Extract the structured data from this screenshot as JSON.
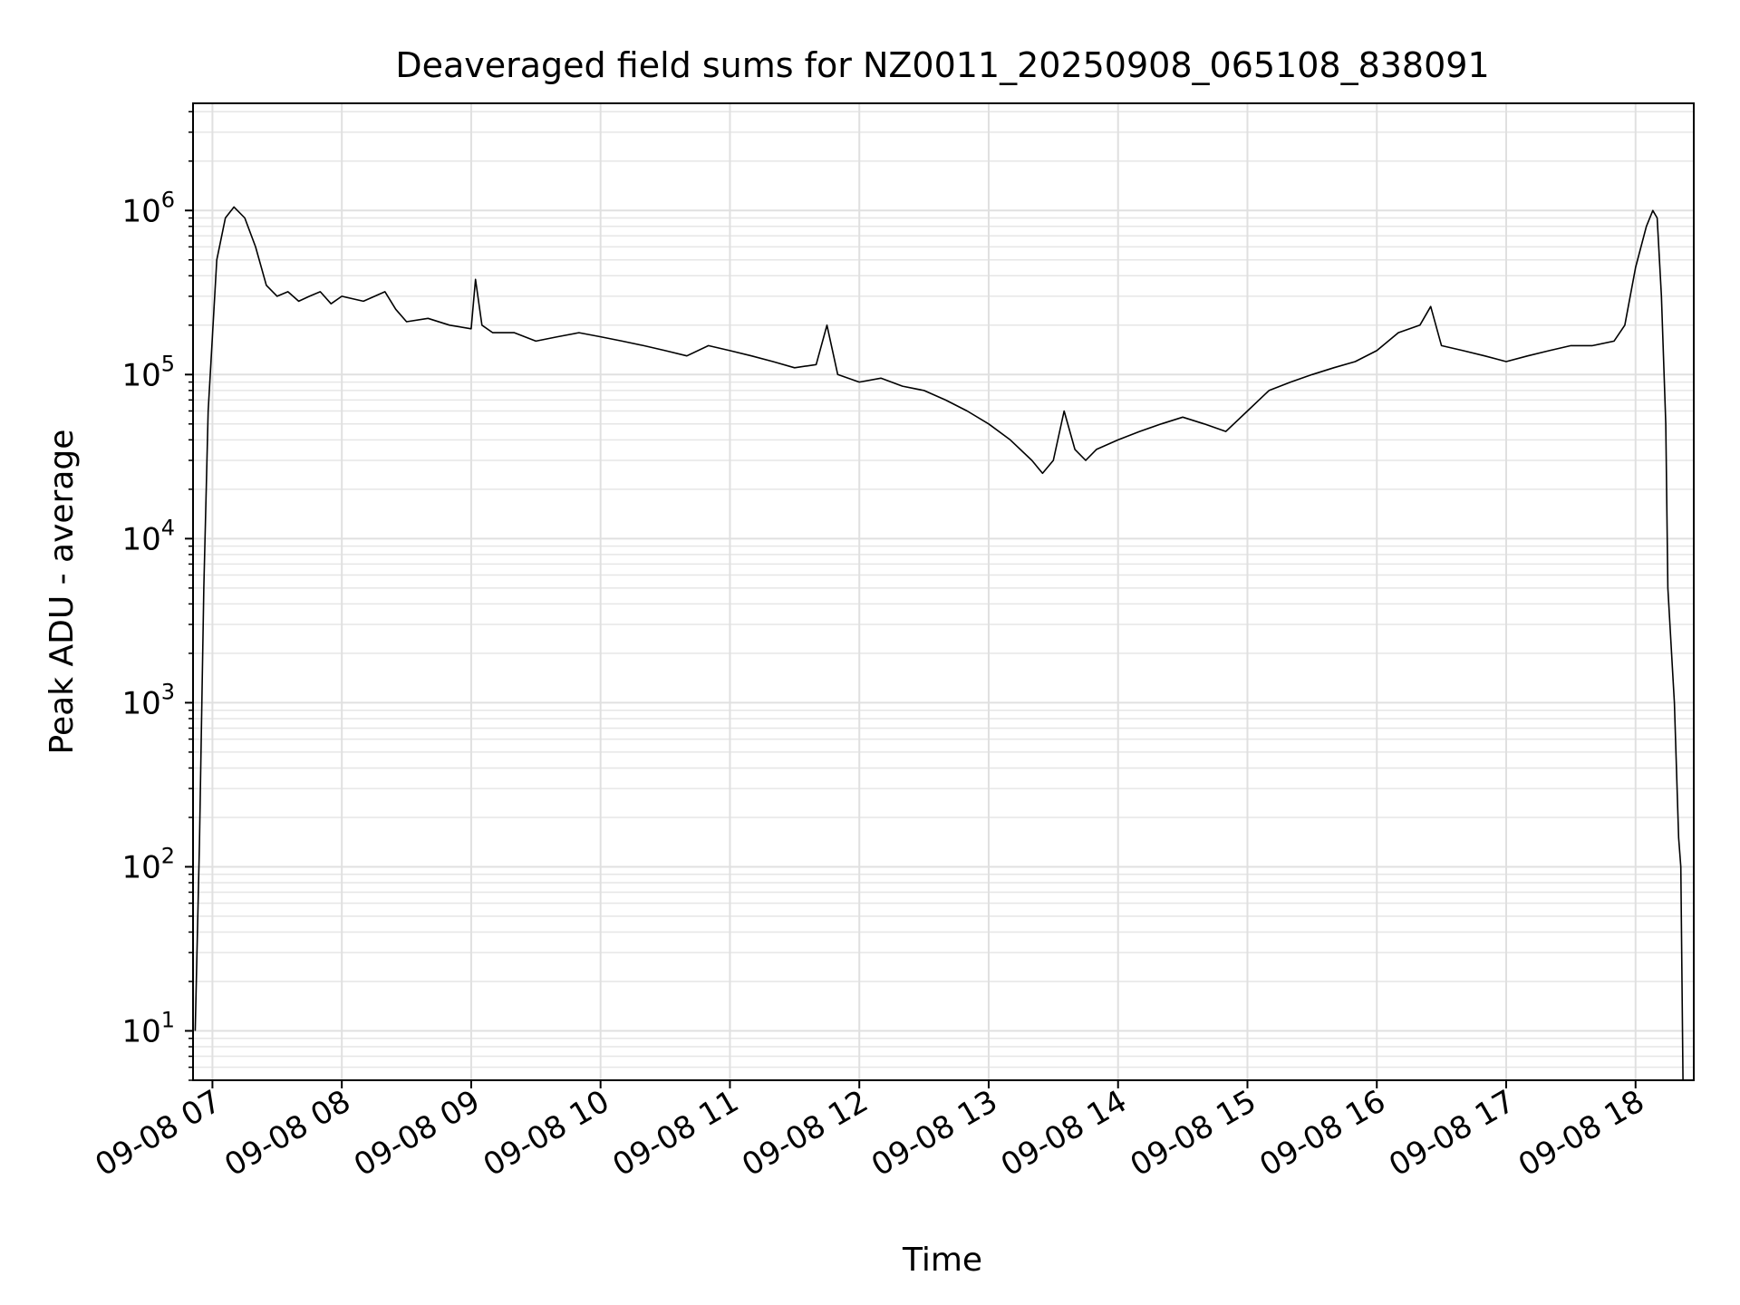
{
  "chart_data": {
    "type": "line",
    "title": "Deaveraged field sums for NZ0011_20250908_065108_838091",
    "xlabel": "Time",
    "ylabel": "Peak ADU - average",
    "x_unit": "hour of 2025-09-08",
    "xlim": [
      "09-08 06:51",
      "09-08 18:27"
    ],
    "ylim": [
      5,
      4500000
    ],
    "y_scale": "log",
    "grid": true,
    "x_tick_labels": [
      "09-08 07",
      "09-08 08",
      "09-08 09",
      "09-08 10",
      "09-08 11",
      "09-08 12",
      "09-08 13",
      "09-08 14",
      "09-08 15",
      "09-08 16",
      "09-08 17",
      "09-08 18"
    ],
    "y_tick_labels": [
      {
        "base": "10",
        "exp": "1"
      },
      {
        "base": "10",
        "exp": "2"
      },
      {
        "base": "10",
        "exp": "3"
      },
      {
        "base": "10",
        "exp": "4"
      },
      {
        "base": "10",
        "exp": "5"
      },
      {
        "base": "10",
        "exp": "6"
      }
    ],
    "series": [
      {
        "color": "#000000",
        "x": [
          "09-08 06:52",
          "09-08 06:54",
          "09-08 06:56",
          "09-08 06:58",
          "09-08 07:02",
          "09-08 07:06",
          "09-08 07:10",
          "09-08 07:15",
          "09-08 07:20",
          "09-08 07:25",
          "09-08 07:30",
          "09-08 07:35",
          "09-08 07:40",
          "09-08 07:45",
          "09-08 07:50",
          "09-08 07:55",
          "09-08 08:00",
          "09-08 08:10",
          "09-08 08:20",
          "09-08 08:25",
          "09-08 08:30",
          "09-08 08:40",
          "09-08 08:50",
          "09-08 09:00",
          "09-08 09:02",
          "09-08 09:05",
          "09-08 09:10",
          "09-08 09:20",
          "09-08 09:30",
          "09-08 09:40",
          "09-08 09:50",
          "09-08 10:00",
          "09-08 10:10",
          "09-08 10:20",
          "09-08 10:30",
          "09-08 10:40",
          "09-08 10:50",
          "09-08 11:00",
          "09-08 11:10",
          "09-08 11:20",
          "09-08 11:30",
          "09-08 11:40",
          "09-08 11:45",
          "09-08 11:50",
          "09-08 12:00",
          "09-08 12:10",
          "09-08 12:20",
          "09-08 12:30",
          "09-08 12:40",
          "09-08 12:50",
          "09-08 13:00",
          "09-08 13:10",
          "09-08 13:20",
          "09-08 13:25",
          "09-08 13:30",
          "09-08 13:35",
          "09-08 13:40",
          "09-08 13:45",
          "09-08 13:50",
          "09-08 14:00",
          "09-08 14:10",
          "09-08 14:20",
          "09-08 14:30",
          "09-08 14:40",
          "09-08 14:50",
          "09-08 15:00",
          "09-08 15:10",
          "09-08 15:20",
          "09-08 15:30",
          "09-08 15:40",
          "09-08 15:50",
          "09-08 16:00",
          "09-08 16:10",
          "09-08 16:20",
          "09-08 16:25",
          "09-08 16:30",
          "09-08 16:40",
          "09-08 16:50",
          "09-08 17:00",
          "09-08 17:10",
          "09-08 17:20",
          "09-08 17:30",
          "09-08 17:40",
          "09-08 17:50",
          "09-08 17:55",
          "09-08 18:00",
          "09-08 18:05",
          "09-08 18:08",
          "09-08 18:10",
          "09-08 18:12",
          "09-08 18:14",
          "09-08 18:15",
          "09-08 18:18",
          "09-08 18:20",
          "09-08 18:21",
          "09-08 18:22"
        ],
        "y": [
          10,
          140,
          5000,
          60000,
          500000,
          900000,
          1050000,
          900000,
          600000,
          350000,
          300000,
          320000,
          280000,
          300000,
          320000,
          270000,
          300000,
          280000,
          320000,
          250000,
          210000,
          220000,
          200000,
          190000,
          380000,
          200000,
          180000,
          180000,
          160000,
          170000,
          180000,
          170000,
          160000,
          150000,
          140000,
          130000,
          150000,
          140000,
          130000,
          120000,
          110000,
          115000,
          200000,
          100000,
          90000,
          95000,
          85000,
          80000,
          70000,
          60000,
          50000,
          40000,
          30000,
          25000,
          30000,
          60000,
          35000,
          30000,
          35000,
          40000,
          45000,
          50000,
          55000,
          50000,
          45000,
          60000,
          80000,
          90000,
          100000,
          110000,
          120000,
          140000,
          180000,
          200000,
          260000,
          150000,
          140000,
          130000,
          120000,
          130000,
          140000,
          150000,
          150000,
          160000,
          200000,
          450000,
          800000,
          1000000,
          900000,
          300000,
          50000,
          5000,
          1000,
          150,
          100,
          5
        ]
      }
    ]
  }
}
